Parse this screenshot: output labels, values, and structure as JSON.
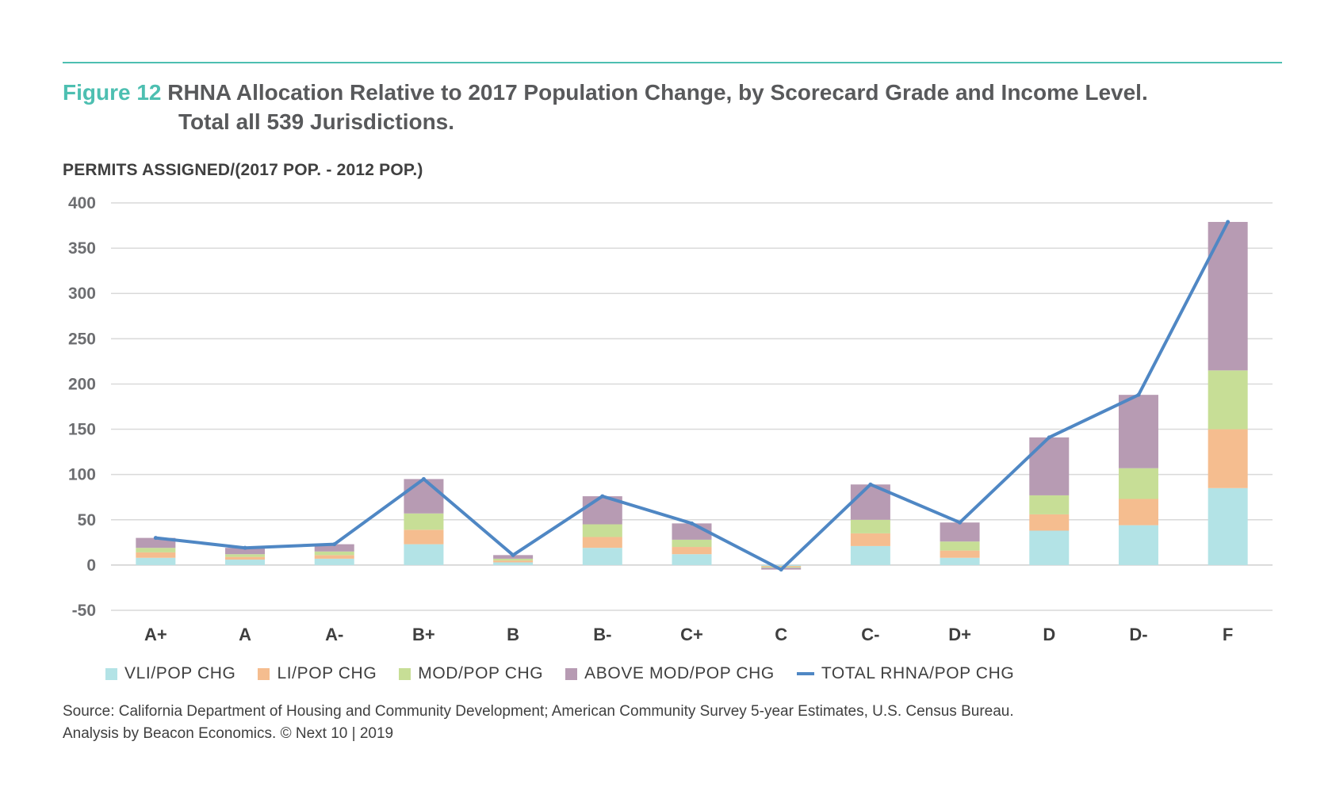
{
  "header": {
    "figure_label": "Figure 12",
    "title_line1": "RHNA Allocation Relative to 2017 Population Change, by Scorecard Grade and Income Level.",
    "title_line2": "Total all 539 Jurisdictions."
  },
  "chart_data": {
    "type": "bar",
    "stacked": true,
    "ylabel": "PERMITS ASSIGNED/(2017 POP. - 2012 POP.)",
    "ylim": [
      -50,
      400
    ],
    "yticks": [
      400,
      350,
      300,
      250,
      200,
      150,
      100,
      50,
      0,
      -50
    ],
    "grid": true,
    "legend_position": "bottom",
    "categories": [
      "A+",
      "A",
      "A-",
      "B+",
      "B",
      "B-",
      "C+",
      "C",
      "C-",
      "D+",
      "D",
      "D-",
      "F"
    ],
    "series": [
      {
        "name": "VLI/POP CHG",
        "color": "#b3e3e6",
        "values": [
          8,
          6,
          7,
          23,
          3,
          19,
          12,
          -1,
          21,
          8,
          38,
          44,
          85
        ]
      },
      {
        "name": "LI/POP CHG",
        "color": "#f5bd8f",
        "values": [
          6,
          3,
          4,
          16,
          2,
          12,
          8,
          -1,
          14,
          8,
          18,
          29,
          65
        ]
      },
      {
        "name": "MOD/POP CHG",
        "color": "#c7de96",
        "values": [
          5,
          3,
          4,
          18,
          2,
          14,
          8,
          -1,
          15,
          10,
          21,
          34,
          65
        ]
      },
      {
        "name": "ABOVE MOD/POP CHG",
        "color": "#b79bb3",
        "values": [
          11,
          7,
          8,
          38,
          4,
          31,
          18,
          -2,
          39,
          21,
          64,
          81,
          164
        ]
      }
    ],
    "line_series": {
      "name": "TOTAL RHNA/POP CHG",
      "color": "#4f87c4",
      "values": [
        30,
        19,
        23,
        95,
        11,
        76,
        46,
        -5,
        89,
        47,
        141,
        188,
        379
      ]
    }
  },
  "source": {
    "line1": "Source: California Department of Housing and Community Development; American Community Survey 5-year Estimates, U.S. Census Bureau.",
    "line2": "Analysis by Beacon Economics. © Next 10 | 2019"
  }
}
